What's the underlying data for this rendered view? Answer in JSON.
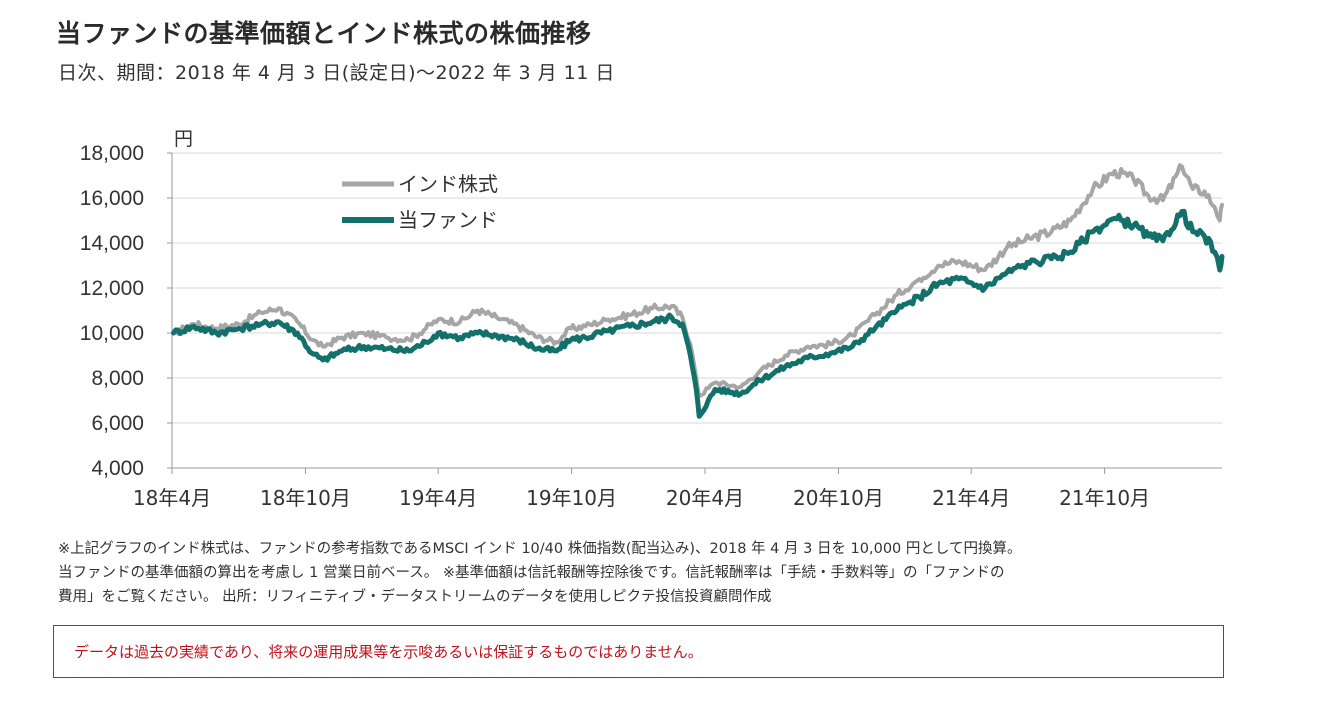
{
  "header": {
    "title": "当ファンドの基準価額とインド株式の株価推移",
    "subtitle": "日次、期間：2018 年 4 月 3 日(設定日)～2022 年 3 月 11 日"
  },
  "notes": {
    "line1": "※上記グラフのインド株式は、ファンドの参考指数であるMSCI インド 10/40 株価指数(配当込み)、2018 年 4 月 3 日を 10,000 円として円換算。",
    "line2": "当ファンドの基準価額の算出を考慮し 1 営業日前ベース。 ※基準価額は信託報酬等控除後です。信託報酬率は「手続・手数料等」の「ファンドの",
    "line3": "費用」をご覧ください。 出所：リフィニティブ・データストリームのデータを使用しピクテ投信投資顧問作成"
  },
  "warning": {
    "text": "データは過去の実績であり、将来の運用成果等を示唆あるいは保証するものではありません。",
    "color": "#c0121c"
  },
  "chart_data": {
    "type": "line",
    "ylabel": "円",
    "ylim": [
      4000,
      18000
    ],
    "yticks": [
      4000,
      6000,
      8000,
      10000,
      12000,
      14000,
      16000,
      18000
    ],
    "ytick_labels": [
      "4,000",
      "6,000",
      "8,000",
      "10,000",
      "12,000",
      "14,000",
      "16,000",
      "18,000"
    ],
    "xlim": [
      "2018-04-03",
      "2022-03-11"
    ],
    "x_ticks": [
      {
        "date": "2018-04-01",
        "label": "18年4月"
      },
      {
        "date": "2018-10-01",
        "label": "18年10月"
      },
      {
        "date": "2019-04-01",
        "label": "19年4月"
      },
      {
        "date": "2019-10-01",
        "label": "19年10月"
      },
      {
        "date": "2020-04-01",
        "label": "20年4月"
      },
      {
        "date": "2020-10-01",
        "label": "20年10月"
      },
      {
        "date": "2021-04-01",
        "label": "21年4月"
      },
      {
        "date": "2021-10-01",
        "label": "21年10月"
      }
    ],
    "grid": "horizontal",
    "legend_position": "top-left",
    "series": [
      {
        "name": "インド株式",
        "color": "#a6a6a6",
        "points": [
          [
            "2018-04-03",
            10000
          ],
          [
            "2018-05-01",
            10400
          ],
          [
            "2018-06-01",
            10200
          ],
          [
            "2018-07-01",
            10400
          ],
          [
            "2018-08-01",
            10900
          ],
          [
            "2018-08-25",
            11100
          ],
          [
            "2018-09-20",
            10500
          ],
          [
            "2018-10-10",
            9700
          ],
          [
            "2018-10-25",
            9400
          ],
          [
            "2018-11-20",
            9800
          ],
          [
            "2018-12-20",
            10000
          ],
          [
            "2019-01-20",
            9800
          ],
          [
            "2019-02-20",
            9700
          ],
          [
            "2019-03-15",
            10200
          ],
          [
            "2019-04-01",
            10600
          ],
          [
            "2019-05-01",
            10500
          ],
          [
            "2019-05-25",
            11000
          ],
          [
            "2019-06-20",
            10700
          ],
          [
            "2019-07-20",
            10300
          ],
          [
            "2019-08-15",
            9800
          ],
          [
            "2019-09-10",
            9600
          ],
          [
            "2019-09-30",
            10200
          ],
          [
            "2019-10-20",
            10300
          ],
          [
            "2019-11-20",
            10600
          ],
          [
            "2019-12-20",
            10800
          ],
          [
            "2020-01-20",
            11100
          ],
          [
            "2020-02-15",
            11200
          ],
          [
            "2020-03-01",
            10700
          ],
          [
            "2020-03-12",
            9500
          ],
          [
            "2020-03-20",
            8000
          ],
          [
            "2020-03-24",
            7200
          ],
          [
            "2020-04-15",
            7800
          ],
          [
            "2020-05-20",
            7600
          ],
          [
            "2020-06-15",
            8300
          ],
          [
            "2020-07-20",
            9000
          ],
          [
            "2020-08-20",
            9400
          ],
          [
            "2020-09-20",
            9500
          ],
          [
            "2020-10-20",
            9900
          ],
          [
            "2020-11-20",
            10800
          ],
          [
            "2020-12-20",
            11700
          ],
          [
            "2021-01-20",
            12400
          ],
          [
            "2021-02-15",
            13000
          ],
          [
            "2021-03-15",
            13200
          ],
          [
            "2021-04-20",
            12800
          ],
          [
            "2021-05-20",
            13800
          ],
          [
            "2021-06-20",
            14200
          ],
          [
            "2021-07-20",
            14500
          ],
          [
            "2021-08-15",
            15000
          ],
          [
            "2021-09-15",
            16400
          ],
          [
            "2021-10-15",
            17200
          ],
          [
            "2021-11-10",
            16800
          ],
          [
            "2021-11-30",
            16100
          ],
          [
            "2021-12-20",
            15900
          ],
          [
            "2022-01-15",
            17400
          ],
          [
            "2022-01-30",
            16400
          ],
          [
            "2022-02-15",
            16300
          ],
          [
            "2022-03-01",
            15600
          ],
          [
            "2022-03-08",
            15000
          ],
          [
            "2022-03-11",
            15700
          ]
        ]
      },
      {
        "name": "当ファンド",
        "color": "#14706a",
        "points": [
          [
            "2018-04-03",
            10000
          ],
          [
            "2018-05-01",
            10300
          ],
          [
            "2018-06-01",
            10000
          ],
          [
            "2018-07-01",
            10200
          ],
          [
            "2018-08-01",
            10400
          ],
          [
            "2018-08-25",
            10500
          ],
          [
            "2018-09-20",
            10000
          ],
          [
            "2018-10-10",
            9100
          ],
          [
            "2018-10-25",
            8800
          ],
          [
            "2018-11-20",
            9200
          ],
          [
            "2018-12-20",
            9400
          ],
          [
            "2019-01-20",
            9300
          ],
          [
            "2019-02-20",
            9200
          ],
          [
            "2019-03-15",
            9600
          ],
          [
            "2019-04-01",
            10000
          ],
          [
            "2019-05-01",
            9800
          ],
          [
            "2019-05-25",
            10000
          ],
          [
            "2019-06-20",
            9900
          ],
          [
            "2019-07-20",
            9700
          ],
          [
            "2019-08-15",
            9300
          ],
          [
            "2019-09-10",
            9200
          ],
          [
            "2019-09-30",
            9700
          ],
          [
            "2019-10-20",
            9800
          ],
          [
            "2019-11-20",
            10100
          ],
          [
            "2019-12-20",
            10300
          ],
          [
            "2020-01-20",
            10500
          ],
          [
            "2020-02-15",
            10700
          ],
          [
            "2020-03-01",
            10400
          ],
          [
            "2020-03-12",
            9000
          ],
          [
            "2020-03-20",
            7500
          ],
          [
            "2020-03-24",
            6300
          ],
          [
            "2020-04-15",
            7500
          ],
          [
            "2020-05-20",
            7300
          ],
          [
            "2020-06-15",
            7900
          ],
          [
            "2020-07-20",
            8500
          ],
          [
            "2020-08-20",
            8900
          ],
          [
            "2020-09-20",
            9100
          ],
          [
            "2020-10-20",
            9400
          ],
          [
            "2020-11-20",
            10200
          ],
          [
            "2020-12-20",
            11000
          ],
          [
            "2021-01-20",
            11600
          ],
          [
            "2021-02-15",
            12200
          ],
          [
            "2021-03-15",
            12400
          ],
          [
            "2021-04-20",
            12000
          ],
          [
            "2021-05-20",
            12700
          ],
          [
            "2021-06-20",
            13100
          ],
          [
            "2021-07-20",
            13300
          ],
          [
            "2021-08-15",
            13600
          ],
          [
            "2021-09-15",
            14500
          ],
          [
            "2021-10-15",
            15100
          ],
          [
            "2021-11-10",
            14800
          ],
          [
            "2021-11-30",
            14300
          ],
          [
            "2021-12-20",
            14100
          ],
          [
            "2022-01-15",
            15400
          ],
          [
            "2022-01-30",
            14500
          ],
          [
            "2022-02-15",
            14300
          ],
          [
            "2022-03-01",
            13600
          ],
          [
            "2022-03-08",
            12800
          ],
          [
            "2022-03-11",
            13400
          ]
        ]
      }
    ]
  }
}
